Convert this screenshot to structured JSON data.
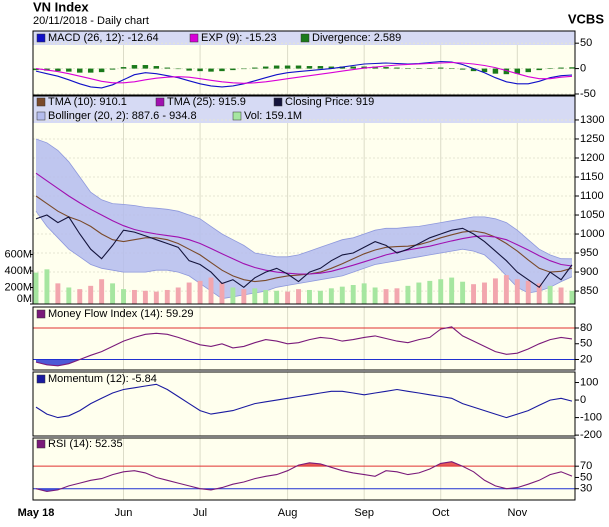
{
  "header": {
    "title": "VN Index",
    "subtitle": "20/11/2018 - Daily chart",
    "brand": "VCBS"
  },
  "chart_data": [
    {
      "type": "line",
      "grid": true,
      "ylim": [
        -52,
        74
      ],
      "yticks": [
        50,
        0,
        -50
      ],
      "series": [
        {
          "name": "MACD (26, 12): -12.64",
          "color": "#1010c8",
          "values": [
            -5,
            -10,
            -15,
            -22,
            -30,
            -36,
            -38,
            -32,
            -22,
            -12,
            -8,
            -10,
            -14,
            -18,
            -24,
            -30,
            -34,
            -36,
            -34,
            -30,
            -24,
            -18,
            -12,
            -8,
            -6,
            -4,
            -2,
            0,
            3,
            6,
            9,
            10,
            11,
            10,
            9,
            10,
            12,
            14,
            13,
            8,
            0,
            -8,
            -18,
            -26,
            -30,
            -30,
            -25,
            -18,
            -14,
            -12.64
          ]
        },
        {
          "name": "EXP (9): -15.23",
          "color": "#d800d8",
          "values": [
            0,
            -3,
            -6,
            -10,
            -15,
            -20,
            -25,
            -28,
            -28,
            -26,
            -22,
            -19,
            -17,
            -16,
            -17,
            -20,
            -23,
            -26,
            -28,
            -29,
            -28,
            -26,
            -23,
            -20,
            -17,
            -14,
            -11,
            -8,
            -5,
            -2,
            1,
            3,
            5,
            7,
            8,
            9,
            10,
            11,
            12,
            11,
            9,
            6,
            2,
            -4,
            -10,
            -16,
            -20,
            -20,
            -17,
            -15.23
          ]
        },
        {
          "name": "Divergence: 2.589",
          "color": "#1a7a1a",
          "kind": "bar",
          "values": [
            -3,
            -4,
            -5,
            -6,
            -8,
            -8,
            -7,
            -2,
            3,
            7,
            7,
            5,
            2,
            -1,
            -4,
            -5,
            -6,
            -5,
            -3,
            -1,
            2,
            4,
            6,
            6,
            6,
            5,
            5,
            4,
            4,
            4,
            4,
            4,
            3,
            2,
            1,
            1,
            1,
            2,
            1,
            -2,
            -5,
            -7,
            -10,
            -11,
            -10,
            -7,
            -3,
            1,
            2,
            2.589
          ]
        }
      ]
    },
    {
      "type": "line",
      "grid": true,
      "ylim": [
        816,
        1363
      ],
      "yticks": [
        850,
        900,
        950,
        1000,
        1050,
        1100,
        1150,
        1200,
        1250,
        1300
      ],
      "y2lim": [
        0,
        2520
      ],
      "y2ticks": [
        {
          "value": 0,
          "label": "0M"
        },
        {
          "value": 200,
          "label": "200M"
        },
        {
          "value": 400,
          "label": "400M"
        },
        {
          "value": 600,
          "label": "600M"
        }
      ],
      "series": [
        {
          "name": "TMA (10): 910.1",
          "color": "#7a4a2a",
          "values": [
            1100,
            1080,
            1060,
            1045,
            1035,
            1020,
            1000,
            985,
            980,
            985,
            990,
            990,
            985,
            975,
            960,
            945,
            925,
            905,
            890,
            880,
            875,
            878,
            885,
            890,
            892,
            895,
            900,
            910,
            922,
            935,
            948,
            958,
            965,
            967,
            968,
            972,
            980,
            990,
            998,
            1005,
            1008,
            1003,
            992,
            975,
            955,
            932,
            910,
            900,
            902,
            910.1
          ]
        },
        {
          "name": "TMA (25): 915.9",
          "color": "#a010b0",
          "values": [
            1160,
            1140,
            1120,
            1100,
            1082,
            1065,
            1050,
            1035,
            1022,
            1012,
            1005,
            1000,
            996,
            992,
            985,
            975,
            962,
            948,
            935,
            922,
            912,
            905,
            900,
            897,
            895,
            895,
            897,
            902,
            910,
            918,
            927,
            936,
            945,
            952,
            958,
            963,
            968,
            975,
            982,
            988,
            993,
            995,
            992,
            985,
            972,
            958,
            943,
            930,
            920,
            915.9
          ]
        },
        {
          "name": "Closing Price: 919",
          "color": "#14143c",
          "values": [
            1040,
            1050,
            1030,
            1045,
            1000,
            960,
            935,
            970,
            1010,
            1005,
            995,
            985,
            975,
            965,
            930,
            920,
            900,
            870,
            880,
            860,
            885,
            900,
            910,
            895,
            875,
            900,
            910,
            930,
            945,
            950,
            965,
            980,
            970,
            950,
            960,
            975,
            990,
            1000,
            1010,
            1015,
            1000,
            980,
            955,
            930,
            900,
            880,
            860,
            900,
            880,
            919
          ]
        },
        {
          "name": "Vol: 159.1M",
          "color": "#a6e6a0",
          "down_color": "#f2a6ae",
          "kind": "bar",
          "axis": "y2",
          "values": [
            380,
            420,
            250,
            200,
            180,
            220,
            300,
            250,
            180,
            170,
            160,
            150,
            170,
            200,
            260,
            280,
            320,
            260,
            200,
            180,
            190,
            170,
            160,
            150,
            180,
            170,
            160,
            190,
            210,
            230,
            250,
            200,
            180,
            190,
            220,
            260,
            280,
            300,
            320,
            270,
            240,
            260,
            310,
            350,
            300,
            280,
            250,
            220,
            200,
            159.1
          ]
        }
      ],
      "band": {
        "name": "Bollinger (20, 2): 887.6 - 934.8",
        "color": "#b4bcee",
        "upper": [
          1250,
          1240,
          1220,
          1190,
          1150,
          1110,
          1090,
          1080,
          1078,
          1075,
          1070,
          1068,
          1065,
          1060,
          1050,
          1040,
          1020,
          1000,
          985,
          970,
          950,
          945,
          940,
          940,
          945,
          955,
          965,
          975,
          985,
          990,
          1000,
          1010,
          1015,
          1015,
          1018,
          1020,
          1025,
          1030,
          1035,
          1040,
          1045,
          1045,
          1040,
          1030,
          1010,
          985,
          960,
          945,
          935,
          934.8
        ],
        "lower": [
          1060,
          1020,
          990,
          960,
          940,
          920,
          910,
          905,
          900,
          900,
          900,
          905,
          905,
          900,
          890,
          870,
          850,
          830,
          835,
          840,
          845,
          850,
          860,
          865,
          870,
          875,
          880,
          885,
          890,
          900,
          910,
          920,
          925,
          930,
          935,
          940,
          945,
          950,
          955,
          960,
          955,
          945,
          920,
          890,
          860,
          845,
          850,
          860,
          875,
          887.6
        ]
      }
    },
    {
      "type": "line",
      "ylim": [
        0,
        120
      ],
      "yticks": [
        80,
        50,
        20
      ],
      "overbought": 80,
      "oversold": 20,
      "series": [
        {
          "name": "Money Flow Index (14): 59.29",
          "color": "#7a1a7a",
          "values": [
            15,
            10,
            8,
            12,
            20,
            28,
            35,
            45,
            55,
            62,
            68,
            70,
            68,
            62,
            55,
            48,
            45,
            50,
            42,
            45,
            52,
            58,
            55,
            50,
            52,
            58,
            62,
            60,
            55,
            58,
            62,
            65,
            60,
            55,
            52,
            58,
            62,
            78,
            82,
            65,
            55,
            45,
            35,
            30,
            32,
            40,
            50,
            58,
            62,
            59.29
          ]
        }
      ]
    },
    {
      "type": "line",
      "ylim": [
        -205,
        160
      ],
      "yticks": [
        100,
        0,
        -100,
        -200
      ],
      "series": [
        {
          "name": "Momentum (12): -5.84",
          "color": "#1a1aa0",
          "values": [
            -40,
            -80,
            -100,
            -90,
            -60,
            -20,
            10,
            40,
            60,
            70,
            80,
            90,
            60,
            20,
            -20,
            -60,
            -80,
            -70,
            -60,
            -40,
            -20,
            -10,
            0,
            10,
            20,
            30,
            40,
            50,
            50,
            40,
            30,
            40,
            50,
            60,
            50,
            40,
            30,
            20,
            10,
            -20,
            -40,
            -60,
            -80,
            -100,
            -80,
            -60,
            -30,
            0,
            10,
            -5.84
          ]
        }
      ]
    },
    {
      "type": "line",
      "ylim": [
        10,
        120
      ],
      "yticks": [
        70,
        50,
        30
      ],
      "overbought": 70,
      "oversold": 30,
      "categories": [
        "May 18",
        null,
        null,
        null,
        null,
        null,
        null,
        null,
        "Jun",
        null,
        null,
        null,
        null,
        null,
        null,
        "Jul",
        null,
        null,
        null,
        null,
        null,
        null,
        null,
        "Aug",
        null,
        null,
        null,
        null,
        null,
        null,
        "Sep",
        null,
        null,
        null,
        null,
        null,
        null,
        "Oct",
        null,
        null,
        null,
        null,
        null,
        null,
        "Nov",
        null,
        null,
        null,
        null,
        null
      ],
      "series": [
        {
          "name": "RSI (14): 52.35",
          "color": "#7a1a7a",
          "values": [
            30,
            25,
            28,
            35,
            40,
            45,
            48,
            55,
            60,
            62,
            58,
            50,
            45,
            40,
            35,
            30,
            28,
            32,
            38,
            42,
            48,
            52,
            55,
            62,
            72,
            76,
            74,
            68,
            62,
            58,
            55,
            52,
            62,
            60,
            55,
            58,
            65,
            75,
            78,
            70,
            60,
            45,
            35,
            30,
            32,
            38,
            45,
            55,
            60,
            52.35
          ]
        }
      ]
    }
  ]
}
